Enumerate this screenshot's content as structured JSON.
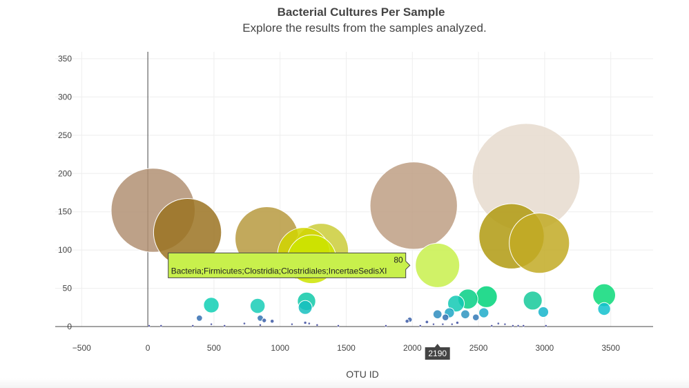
{
  "chart_data": {
    "type": "scatter",
    "title": "Bacterial Cultures Per Sample",
    "subtitle": "Explore the results from the samples analyzed.",
    "xlabel": "OTU ID",
    "ylabel": "",
    "xlim": [
      -700,
      3820
    ],
    "ylim": [
      0,
      350
    ],
    "xticks": [
      -500,
      0,
      500,
      1000,
      1500,
      2000,
      2500,
      3000,
      3500
    ],
    "yticks": [
      0,
      50,
      100,
      150,
      200,
      250,
      300,
      350
    ],
    "grid": true,
    "legend": "none",
    "points": [
      {
        "x": 2860,
        "y": 195,
        "size": 195,
        "color": "#e6dace"
      },
      {
        "x": 40,
        "y": 152,
        "size": 152,
        "color": "#b19173"
      },
      {
        "x": 300,
        "y": 123,
        "size": 123,
        "color": "#9b7322"
      },
      {
        "x": 2010,
        "y": 158,
        "size": 158,
        "color": "#be9f84"
      },
      {
        "x": 900,
        "y": 115,
        "size": 115,
        "color": "#b79a3f"
      },
      {
        "x": 2750,
        "y": 118,
        "size": 118,
        "color": "#b09a10"
      },
      {
        "x": 2960,
        "y": 109,
        "size": 109,
        "color": "#c2aa24"
      },
      {
        "x": 1310,
        "y": 99,
        "size": 99,
        "color": "#cbcd3a"
      },
      {
        "x": 1180,
        "y": 95,
        "size": 95,
        "color": "#d1d500"
      },
      {
        "x": 1240,
        "y": 88,
        "size": 88,
        "color": "#cde400"
      },
      {
        "x": 2190,
        "y": 80,
        "size": 80,
        "color": "#c8f04c"
      },
      {
        "x": 3450,
        "y": 41,
        "size": 41,
        "color": "#0bd979"
      },
      {
        "x": 2560,
        "y": 39,
        "size": 39,
        "color": "#00d37a"
      },
      {
        "x": 2420,
        "y": 36,
        "size": 36,
        "color": "#06cf85"
      },
      {
        "x": 2910,
        "y": 34,
        "size": 34,
        "color": "#15c99a"
      },
      {
        "x": 1200,
        "y": 33,
        "size": 33,
        "color": "#10c9a8"
      },
      {
        "x": 2330,
        "y": 30,
        "size": 30,
        "color": "#12c9b4"
      },
      {
        "x": 480,
        "y": 28,
        "size": 28,
        "color": "#0fcfb4"
      },
      {
        "x": 830,
        "y": 27,
        "size": 27,
        "color": "#18cdb6"
      },
      {
        "x": 1190,
        "y": 25,
        "size": 25,
        "color": "#16c0be"
      },
      {
        "x": 3450,
        "y": 23,
        "size": 23,
        "color": "#12c1ce"
      },
      {
        "x": 2990,
        "y": 19,
        "size": 19,
        "color": "#16b5cb"
      },
      {
        "x": 2540,
        "y": 18,
        "size": 18,
        "color": "#1eacc9"
      },
      {
        "x": 2280,
        "y": 18,
        "size": 18,
        "color": "#1fa6c6"
      },
      {
        "x": 2400,
        "y": 16,
        "size": 16,
        "color": "#2d94c0"
      },
      {
        "x": 2190,
        "y": 16,
        "size": 16,
        "color": "#2e8dbe"
      },
      {
        "x": 2480,
        "y": 12,
        "size": 12,
        "color": "#3379b6"
      },
      {
        "x": 2250,
        "y": 12,
        "size": 12,
        "color": "#3171b1"
      },
      {
        "x": 850,
        "y": 11,
        "size": 11,
        "color": "#3574b3"
      },
      {
        "x": 390,
        "y": 11,
        "size": 11,
        "color": "#356fb1"
      },
      {
        "x": 1980,
        "y": 9,
        "size": 9,
        "color": "#3a62a9"
      },
      {
        "x": 880,
        "y": 8,
        "size": 8,
        "color": "#3a5ea8"
      },
      {
        "x": 1960,
        "y": 7,
        "size": 7,
        "color": "#3c5aa6"
      },
      {
        "x": 940,
        "y": 7,
        "size": 7,
        "color": "#3c58a5"
      },
      {
        "x": 2110,
        "y": 6,
        "size": 6,
        "color": "#3d54a3"
      },
      {
        "x": 1190,
        "y": 5,
        "size": 5,
        "color": "#3e4fa0"
      },
      {
        "x": 2340,
        "y": 5,
        "size": 5,
        "color": "#3e4fa0"
      },
      {
        "x": 730,
        "y": 4,
        "size": 4,
        "color": "#3f4c9e"
      },
      {
        "x": 1220,
        "y": 4,
        "size": 4,
        "color": "#3f4c9e"
      },
      {
        "x": 2650,
        "y": 4,
        "size": 4,
        "color": "#3f4c9e"
      },
      {
        "x": 2700,
        "y": 3,
        "size": 3,
        "color": "#404a9d"
      },
      {
        "x": 480,
        "y": 3,
        "size": 3,
        "color": "#404a9d"
      },
      {
        "x": 2160,
        "y": 3,
        "size": 3,
        "color": "#404a9d"
      },
      {
        "x": 2300,
        "y": 3,
        "size": 3,
        "color": "#404a9d"
      },
      {
        "x": 1090,
        "y": 3,
        "size": 3,
        "color": "#404a9d"
      },
      {
        "x": 2230,
        "y": 3,
        "size": 3,
        "color": "#404a9d"
      },
      {
        "x": 1280,
        "y": 2,
        "size": 2,
        "color": "#41489c"
      },
      {
        "x": 850,
        "y": 2,
        "size": 2,
        "color": "#41489c"
      },
      {
        "x": 10,
        "y": 1,
        "size": 1,
        "color": "#41479b"
      },
      {
        "x": 100,
        "y": 1,
        "size": 1,
        "color": "#41479b"
      },
      {
        "x": 340,
        "y": 1,
        "size": 1,
        "color": "#41479b"
      },
      {
        "x": 580,
        "y": 1,
        "size": 1,
        "color": "#41479b"
      },
      {
        "x": 1440,
        "y": 1,
        "size": 1,
        "color": "#41479b"
      },
      {
        "x": 1800,
        "y": 1,
        "size": 1,
        "color": "#41479b"
      },
      {
        "x": 2060,
        "y": 1,
        "size": 1,
        "color": "#41479b"
      },
      {
        "x": 2600,
        "y": 1,
        "size": 1,
        "color": "#41479b"
      },
      {
        "x": 2760,
        "y": 1,
        "size": 1,
        "color": "#41479b"
      },
      {
        "x": 2800,
        "y": 1,
        "size": 1,
        "color": "#41479b"
      },
      {
        "x": 2840,
        "y": 1,
        "size": 1,
        "color": "#41479b"
      },
      {
        "x": 3010,
        "y": 1,
        "size": 1,
        "color": "#41479b"
      }
    ],
    "hover": {
      "x_label": "2190",
      "value": "80",
      "text": "Bacteria;Firmicutes;Clostridia;Clostridiales;IncertaeSedisXI",
      "color": "#c8f04c"
    }
  }
}
